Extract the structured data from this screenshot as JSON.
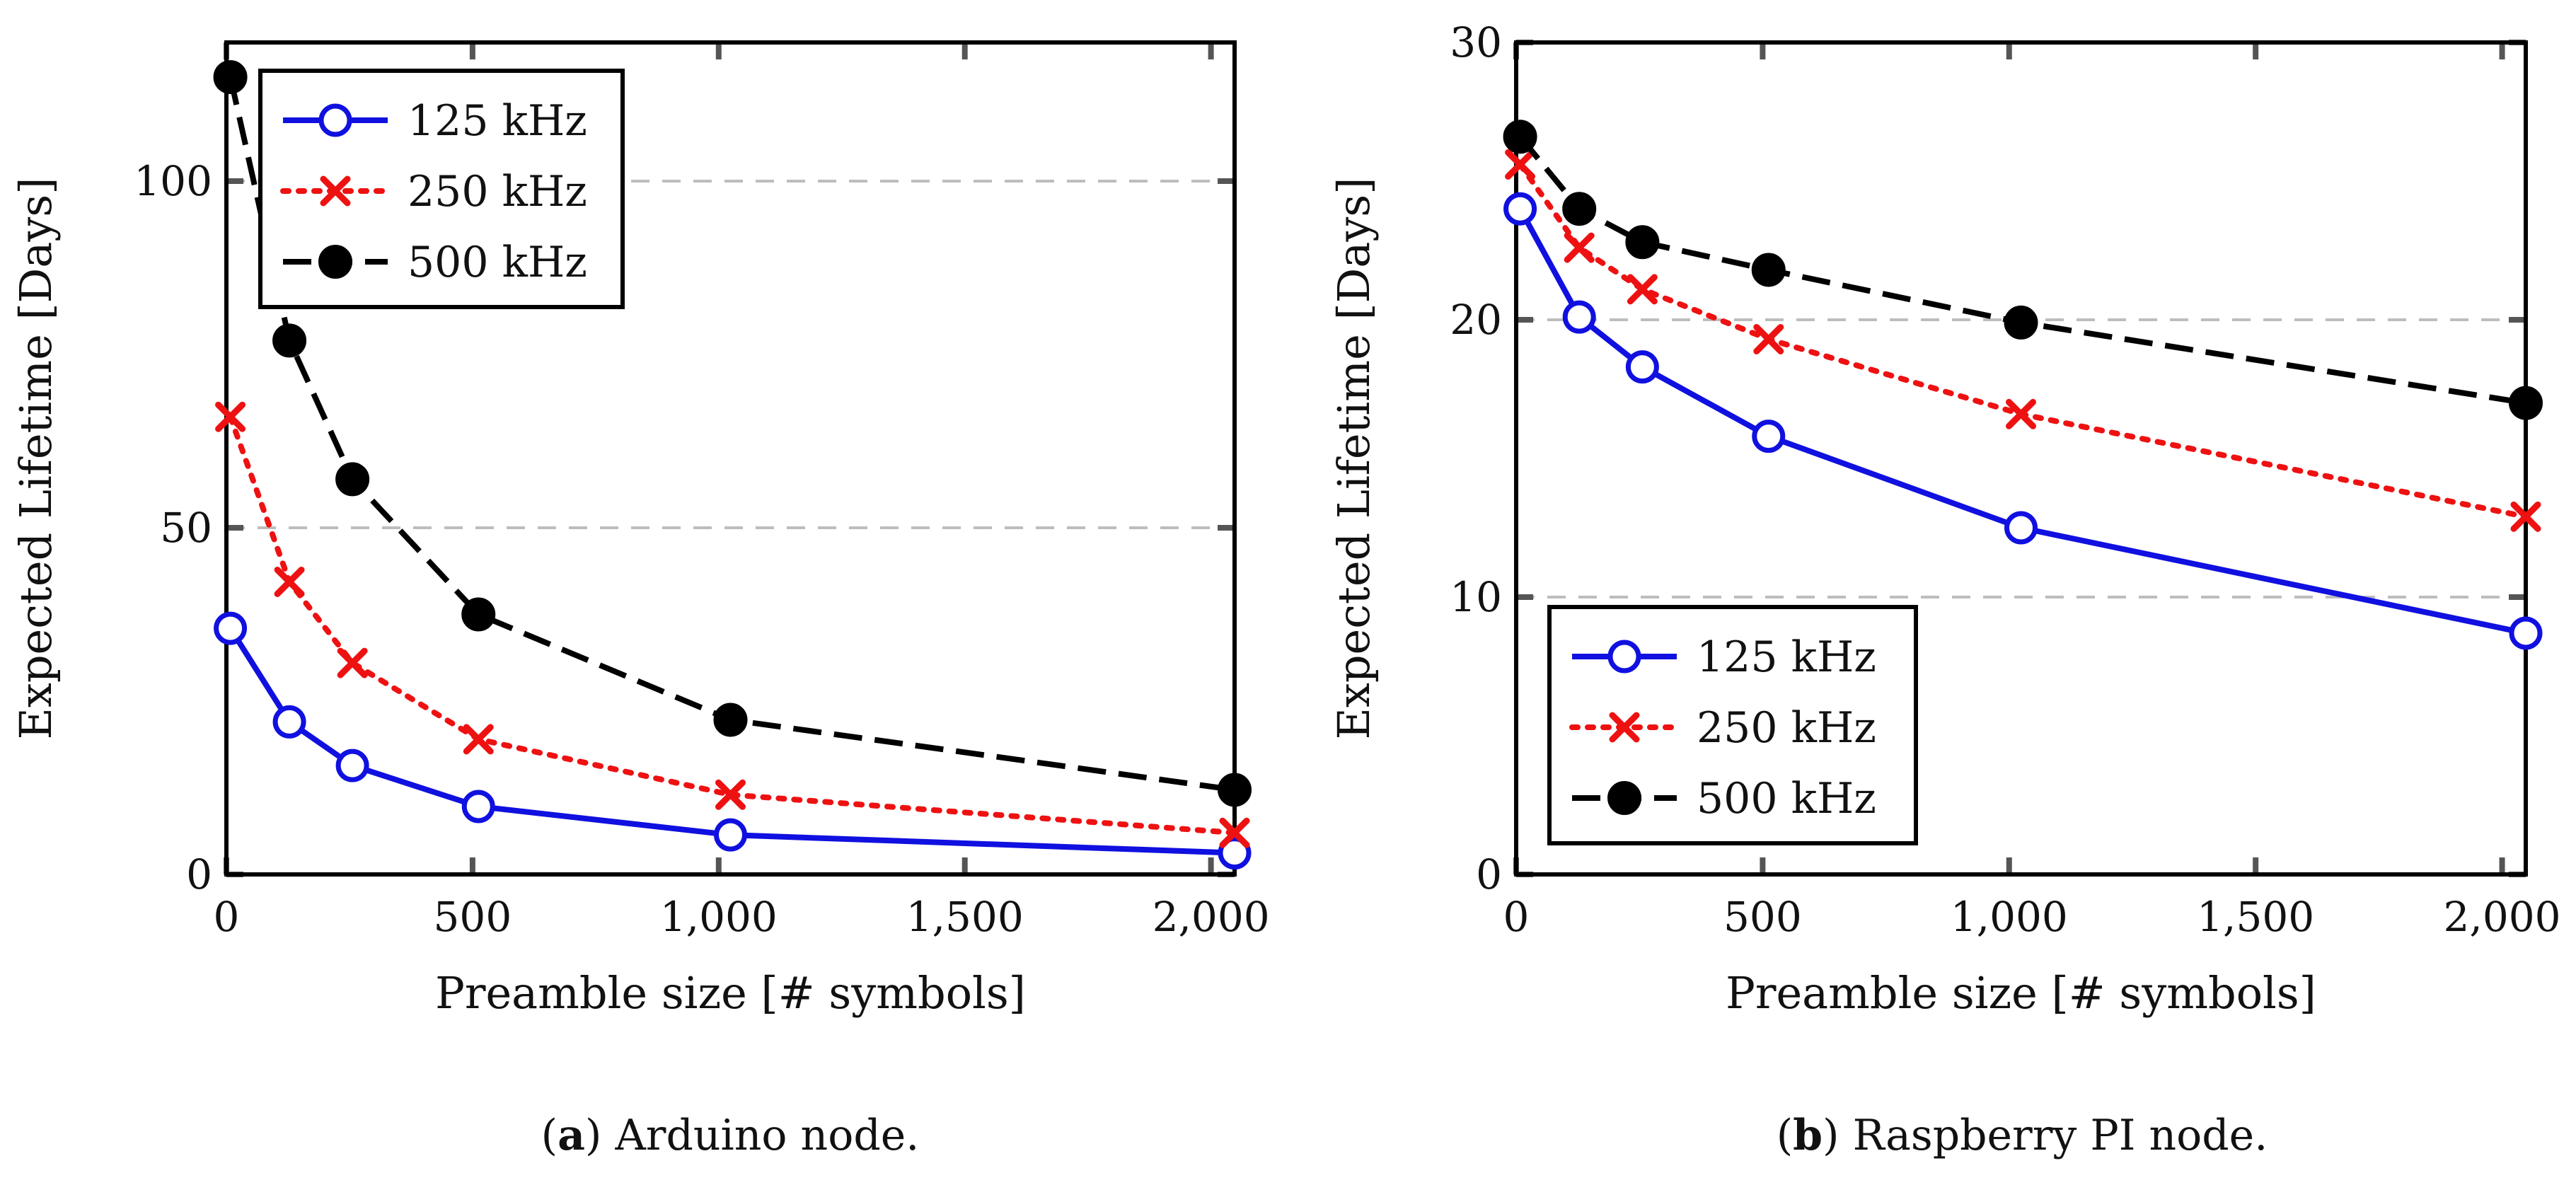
{
  "chart_data": [
    {
      "type": "line",
      "id": "a",
      "caption_letter": "a",
      "caption_text": "Arduino node.",
      "xlabel": "Preamble size [# symbols]",
      "ylabel": "Expected Lifetime [Days]",
      "xlim": [
        0,
        2048
      ],
      "ylim": [
        0,
        120
      ],
      "xticks": [
        0,
        500,
        1000,
        1500,
        2000
      ],
      "xtick_labels": [
        "0",
        "500",
        "1,000",
        "1,500",
        "2,000"
      ],
      "yticks": [
        0,
        50,
        100
      ],
      "ytick_labels": [
        "0",
        "50",
        "100"
      ],
      "grid": "horizontal-dashed",
      "legend_position": "top-left",
      "x": [
        8,
        128,
        256,
        512,
        1024,
        2048
      ],
      "series": [
        {
          "name": "125 kHz",
          "color": "#1010e0",
          "marker": "circle-open",
          "dash": "solid",
          "values": [
            35.5,
            22.0,
            15.7,
            9.8,
            5.7,
            3.1
          ]
        },
        {
          "name": "250 kHz",
          "color": "#ee1111",
          "marker": "x",
          "dash": "dotted",
          "values": [
            66.0,
            42.2,
            30.5,
            19.5,
            11.5,
            6.0
          ]
        },
        {
          "name": "500 kHz",
          "color": "#000000",
          "marker": "circle-filled",
          "dash": "dashed",
          "values": [
            115.0,
            77.0,
            57.0,
            37.5,
            22.3,
            12.2
          ]
        }
      ]
    },
    {
      "type": "line",
      "id": "b",
      "caption_letter": "b",
      "caption_text": "Raspberry PI node.",
      "xlabel": "Preamble size [# symbols]",
      "ylabel": "Expected Lifetime [Days]",
      "xlim": [
        0,
        2048
      ],
      "ylim": [
        0,
        30
      ],
      "xticks": [
        0,
        500,
        1000,
        1500,
        2000
      ],
      "xtick_labels": [
        "0",
        "500",
        "1,000",
        "1,500",
        "2,000"
      ],
      "yticks": [
        0,
        10,
        20,
        30
      ],
      "ytick_labels": [
        "0",
        "10",
        "20",
        "30"
      ],
      "grid": "horizontal-dashed",
      "legend_position": "bottom-left",
      "x": [
        8,
        128,
        256,
        512,
        1024,
        2048
      ],
      "series": [
        {
          "name": "125 kHz",
          "color": "#1010e0",
          "marker": "circle-open",
          "dash": "solid",
          "values": [
            24.0,
            20.1,
            18.3,
            15.8,
            12.5,
            8.7
          ]
        },
        {
          "name": "250 kHz",
          "color": "#ee1111",
          "marker": "x",
          "dash": "dotted",
          "values": [
            25.6,
            22.6,
            21.1,
            19.3,
            16.6,
            12.9
          ]
        },
        {
          "name": "500 kHz",
          "color": "#000000",
          "marker": "circle-filled",
          "dash": "dashed",
          "values": [
            26.6,
            24.0,
            22.8,
            21.8,
            19.9,
            17.0
          ]
        }
      ]
    }
  ]
}
